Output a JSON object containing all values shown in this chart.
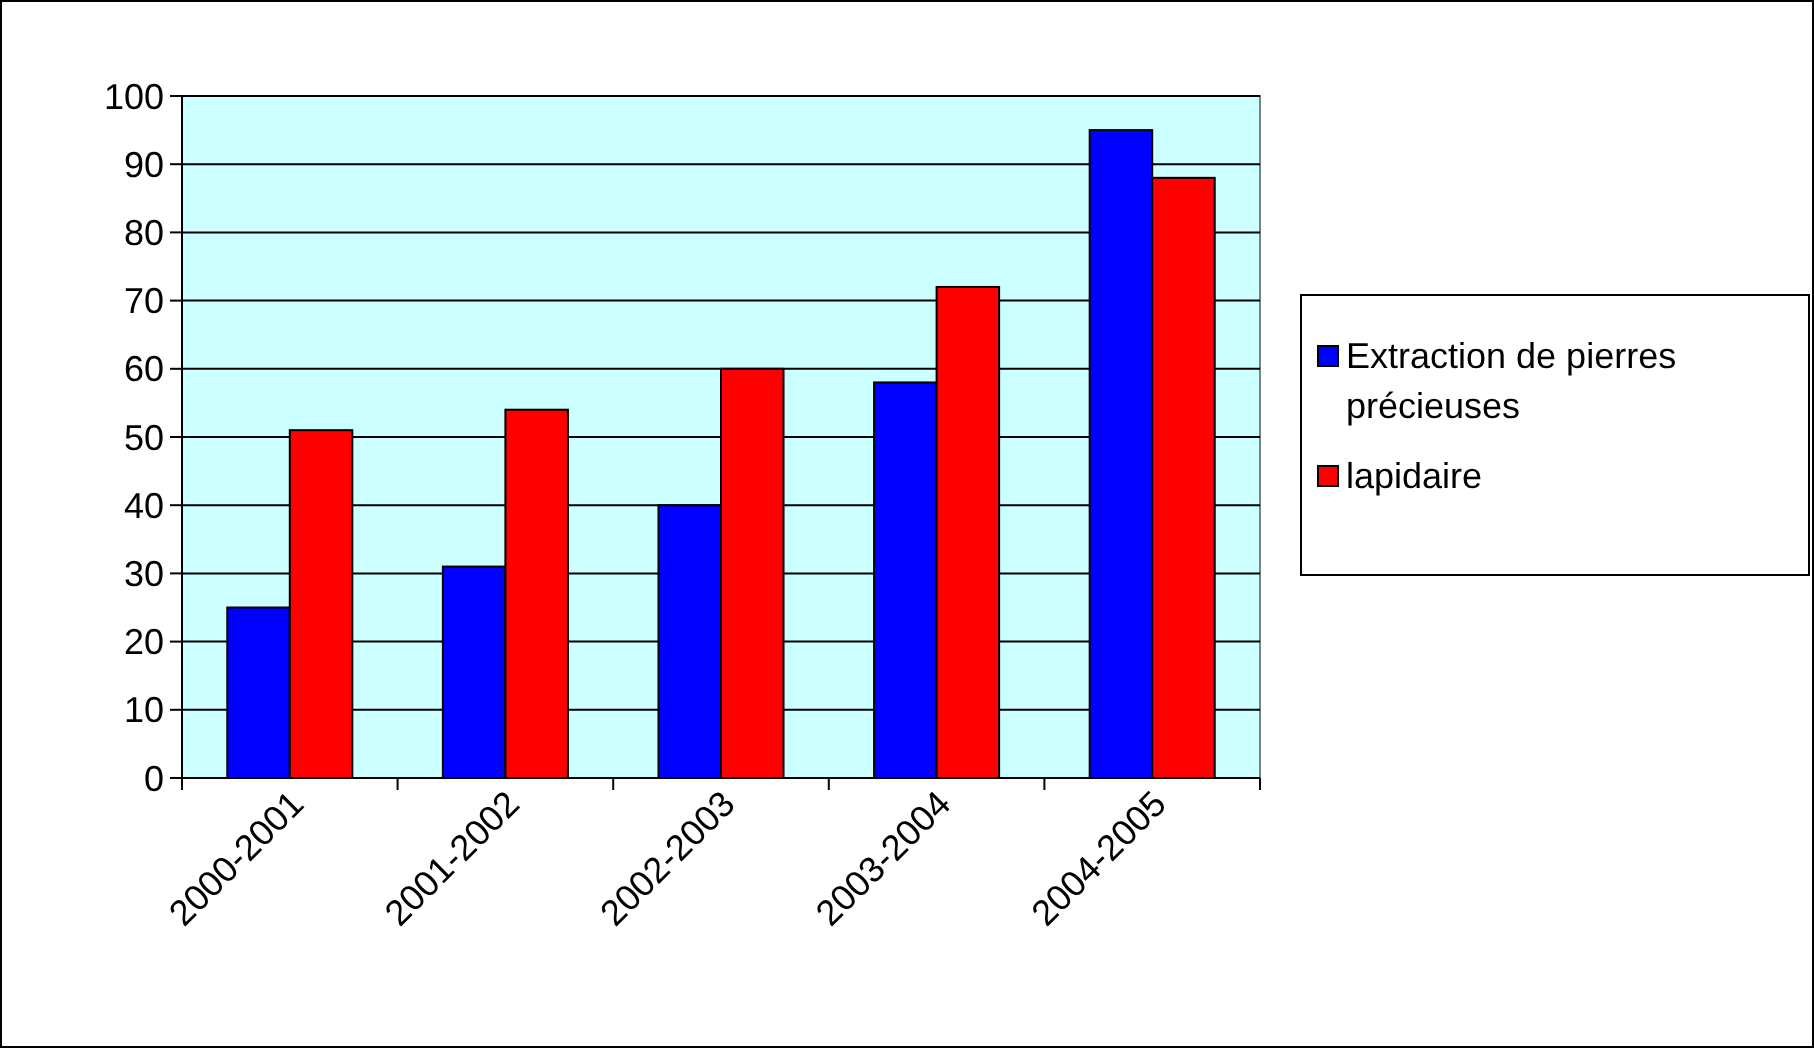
{
  "chart_data": {
    "type": "bar",
    "categories": [
      "2000-2001",
      "2001-2002",
      "2002-2003",
      "2003-2004",
      "2004-2005"
    ],
    "series": [
      {
        "name": "Extraction de pierres précieuses",
        "color": "#0000ff",
        "values": [
          25,
          31,
          40,
          58,
          95
        ]
      },
      {
        "name": "lapidaire",
        "color": "#ff0000",
        "values": [
          51,
          54,
          60,
          72,
          88
        ]
      }
    ],
    "ylim": [
      0,
      100
    ],
    "yticks": [
      0,
      10,
      20,
      30,
      40,
      50,
      60,
      70,
      80,
      90,
      100
    ],
    "grid": "y",
    "legend": "right"
  }
}
